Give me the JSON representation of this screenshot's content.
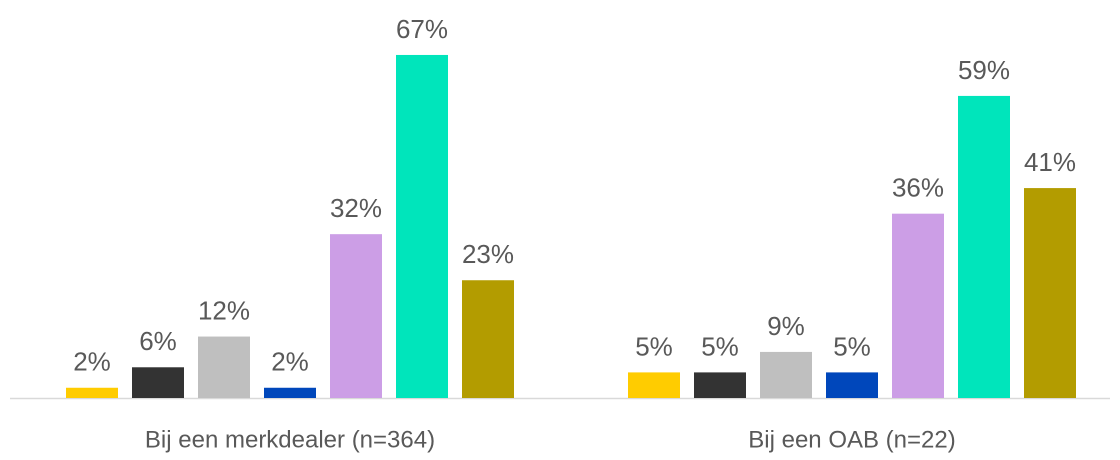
{
  "chart_data": {
    "type": "bar",
    "categories": [
      "Bij een merkdealer (n=364)",
      "Bij een OAB (n=22)"
    ],
    "series": [
      {
        "color": "#ffcc00",
        "values": [
          2,
          5
        ],
        "value_labels": [
          "2%",
          "5%"
        ]
      },
      {
        "color": "#333333",
        "values": [
          6,
          5
        ],
        "value_labels": [
          "6%",
          "5%"
        ]
      },
      {
        "color": "#bfbfbf",
        "values": [
          12,
          9
        ],
        "value_labels": [
          "12%",
          "9%"
        ]
      },
      {
        "color": "#0047bb",
        "values": [
          2,
          5
        ],
        "value_labels": [
          "2%",
          "5%"
        ]
      },
      {
        "color": "#cc9ee6",
        "values": [
          32,
          36
        ],
        "value_labels": [
          "32%",
          "36%"
        ]
      },
      {
        "color": "#00e5bb",
        "values": [
          67,
          59
        ],
        "value_labels": [
          "67%",
          "59%"
        ]
      },
      {
        "color": "#b39c00",
        "values": [
          23,
          41
        ],
        "value_labels": [
          "23%",
          "41%"
        ]
      }
    ]
  }
}
